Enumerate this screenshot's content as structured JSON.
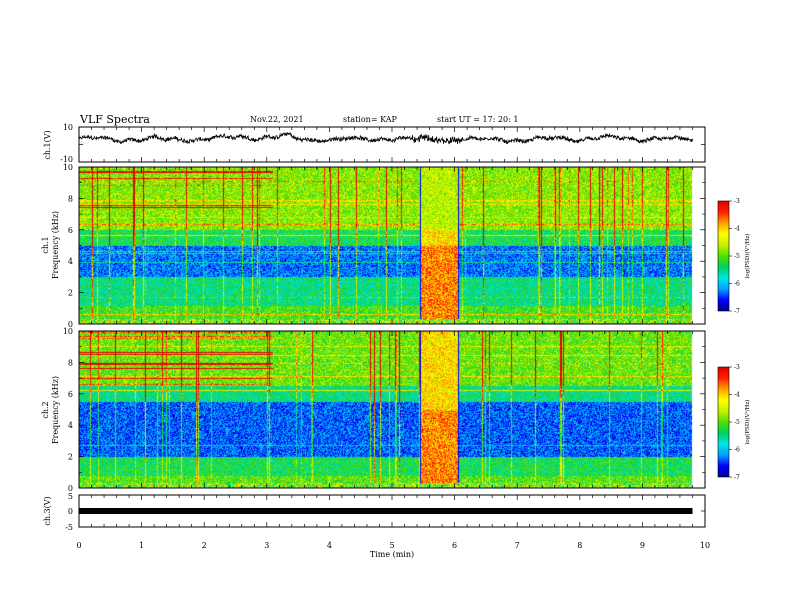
{
  "header": {
    "title": "VLF Spectra",
    "date": "Nov.22, 2021",
    "station": "station= KAP",
    "start": "start  UT =   17: 20: 1"
  },
  "chart_data": [
    {
      "type": "line",
      "panel": "ch1-waveform",
      "ylabel": "ch.1(V)",
      "ylim": [
        -10,
        10
      ],
      "yticks": [
        "10",
        "-10"
      ],
      "xlim": [
        0,
        10
      ],
      "trace_mean_V": 3,
      "trace_range_V": [
        0,
        8
      ]
    },
    {
      "type": "heatmap",
      "panel": "ch1-spectrogram",
      "ylabel": "ch.1\nFrequency (kHz)",
      "ylim": [
        0,
        10
      ],
      "yticks": [
        "0",
        "2",
        "4",
        "6",
        "8",
        "10"
      ],
      "xlim": [
        0,
        10
      ],
      "data_end_min": 9.8,
      "bursts": [
        {
          "x0": 0.0,
          "x1": 3.1,
          "f0": 6.5,
          "f1": 10,
          "desc": "horizontal tone lines"
        },
        {
          "x0": 5.45,
          "x1": 6.05,
          "f0": 0,
          "f1": 6,
          "desc": "broadband emission"
        }
      ],
      "colorbar": {
        "label": "log(PSD)(V²/Hz)",
        "range": [
          -7,
          -3
        ],
        "ticks": [
          "-3",
          "-4",
          "-5",
          "-6",
          "-7"
        ]
      }
    },
    {
      "type": "heatmap",
      "panel": "ch2-spectrogram",
      "ylabel": "ch.2\nFrequency (kHz)",
      "ylim": [
        0,
        10
      ],
      "yticks": [
        "0",
        "2",
        "4",
        "6",
        "8",
        "10"
      ],
      "xlim": [
        0,
        10
      ],
      "data_end_min": 9.8,
      "bursts": [
        {
          "x0": 0.0,
          "x1": 3.1,
          "f0": 6.5,
          "f1": 10,
          "desc": "horizontal tone lines"
        },
        {
          "x0": 5.45,
          "x1": 6.05,
          "f0": 0,
          "f1": 10,
          "desc": "broadband emission"
        }
      ],
      "colorbar": {
        "label": "log(PSD)(V²/Hz)",
        "range": [
          -7,
          -3
        ],
        "ticks": [
          "-3",
          "-4",
          "-5",
          "-6",
          "-7"
        ]
      }
    },
    {
      "type": "line",
      "panel": "ch3-signal",
      "ylabel": "ch.3(V)",
      "ylim": [
        -5,
        5
      ],
      "yticks": [
        "5",
        "0",
        "-5"
      ],
      "xlim": [
        0,
        10
      ],
      "level_V": 0,
      "data_end_min": 9.8
    }
  ],
  "x_axis": {
    "label": "Time (min)",
    "ticks": [
      "0",
      "1",
      "2",
      "3",
      "4",
      "5",
      "6",
      "7",
      "8",
      "9",
      "10"
    ]
  },
  "colors": {
    "trace": "#000000",
    "axes": "#000000",
    "colormap": [
      "#00008b",
      "#0000ff",
      "#00a0ff",
      "#00e5e5",
      "#00d060",
      "#50e000",
      "#c8f000",
      "#ffff00",
      "#ffa000",
      "#ff2000",
      "#e00000",
      "#ffffff"
    ]
  }
}
